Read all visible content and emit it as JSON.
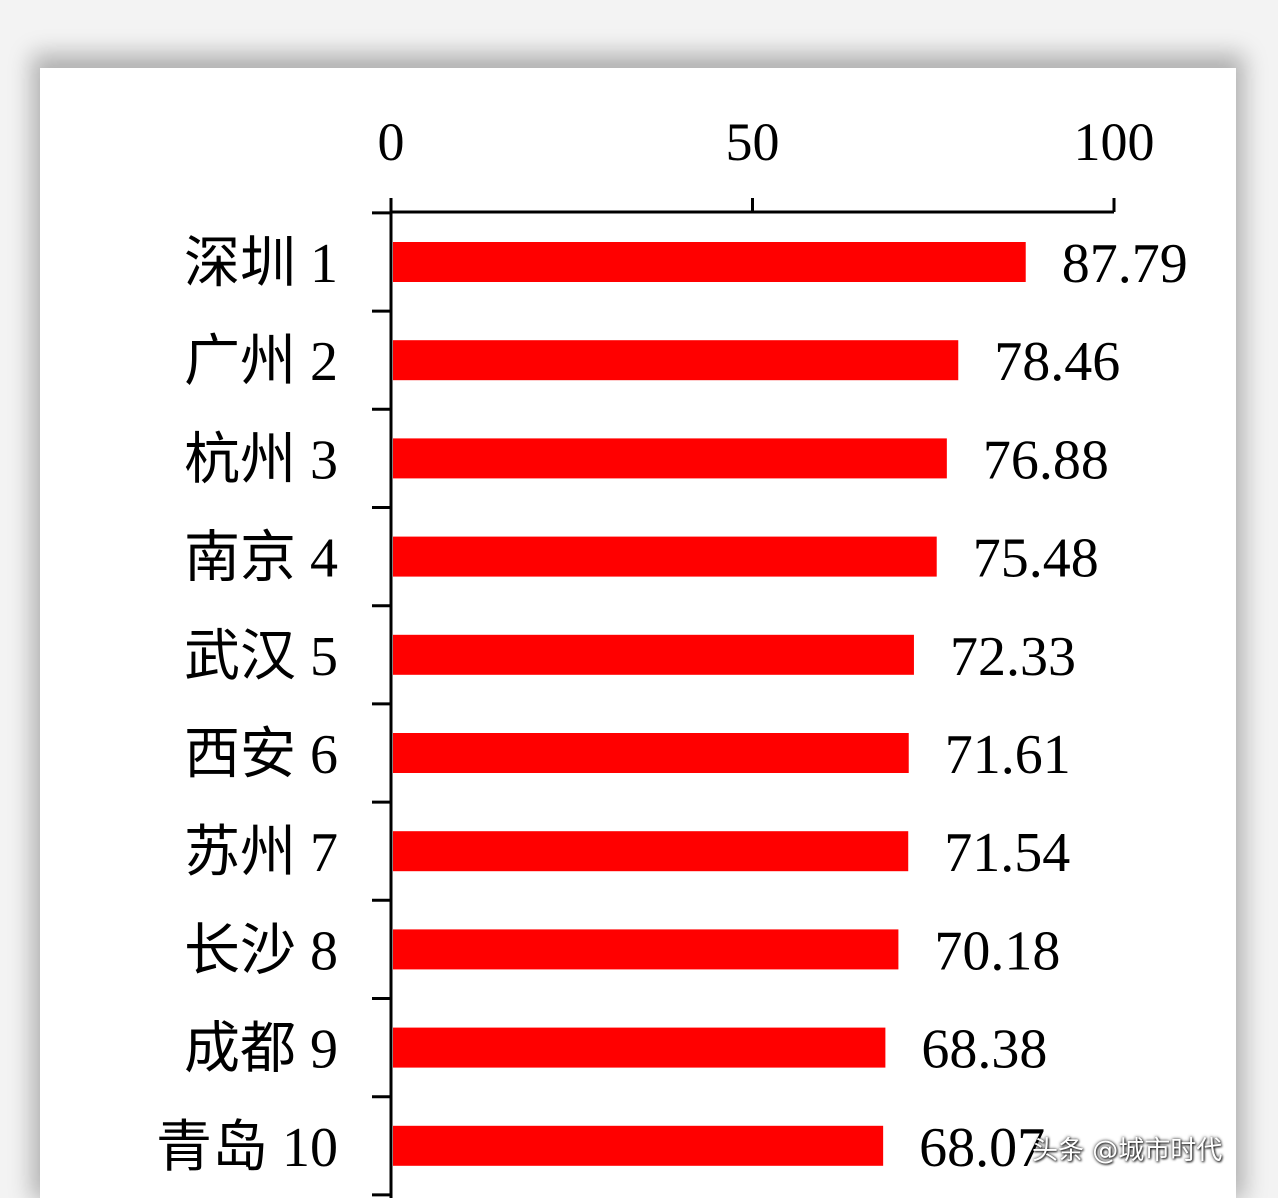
{
  "chart_data": {
    "type": "bar",
    "orientation": "horizontal",
    "xlim": [
      0,
      100
    ],
    "x_ticks": [
      "0",
      "50",
      "100"
    ],
    "x_axis_position": "top",
    "grid": false,
    "bar_color": "#ff0000",
    "categories": [
      "深圳 1",
      "广州 2",
      "杭州 3",
      "南京 4",
      "武汉 5",
      "西安 6",
      "苏州 7",
      "长沙 8",
      "成都 9",
      "青岛 10"
    ],
    "values": [
      87.79,
      78.46,
      76.88,
      75.48,
      72.33,
      71.61,
      71.54,
      70.18,
      68.38,
      68.07
    ],
    "value_labels": [
      "87.79",
      "78.46",
      "76.88",
      "75.48",
      "72.33",
      "71.61",
      "71.54",
      "70.18",
      "68.38",
      "68.07"
    ]
  },
  "watermark": "头条 @城市时代"
}
